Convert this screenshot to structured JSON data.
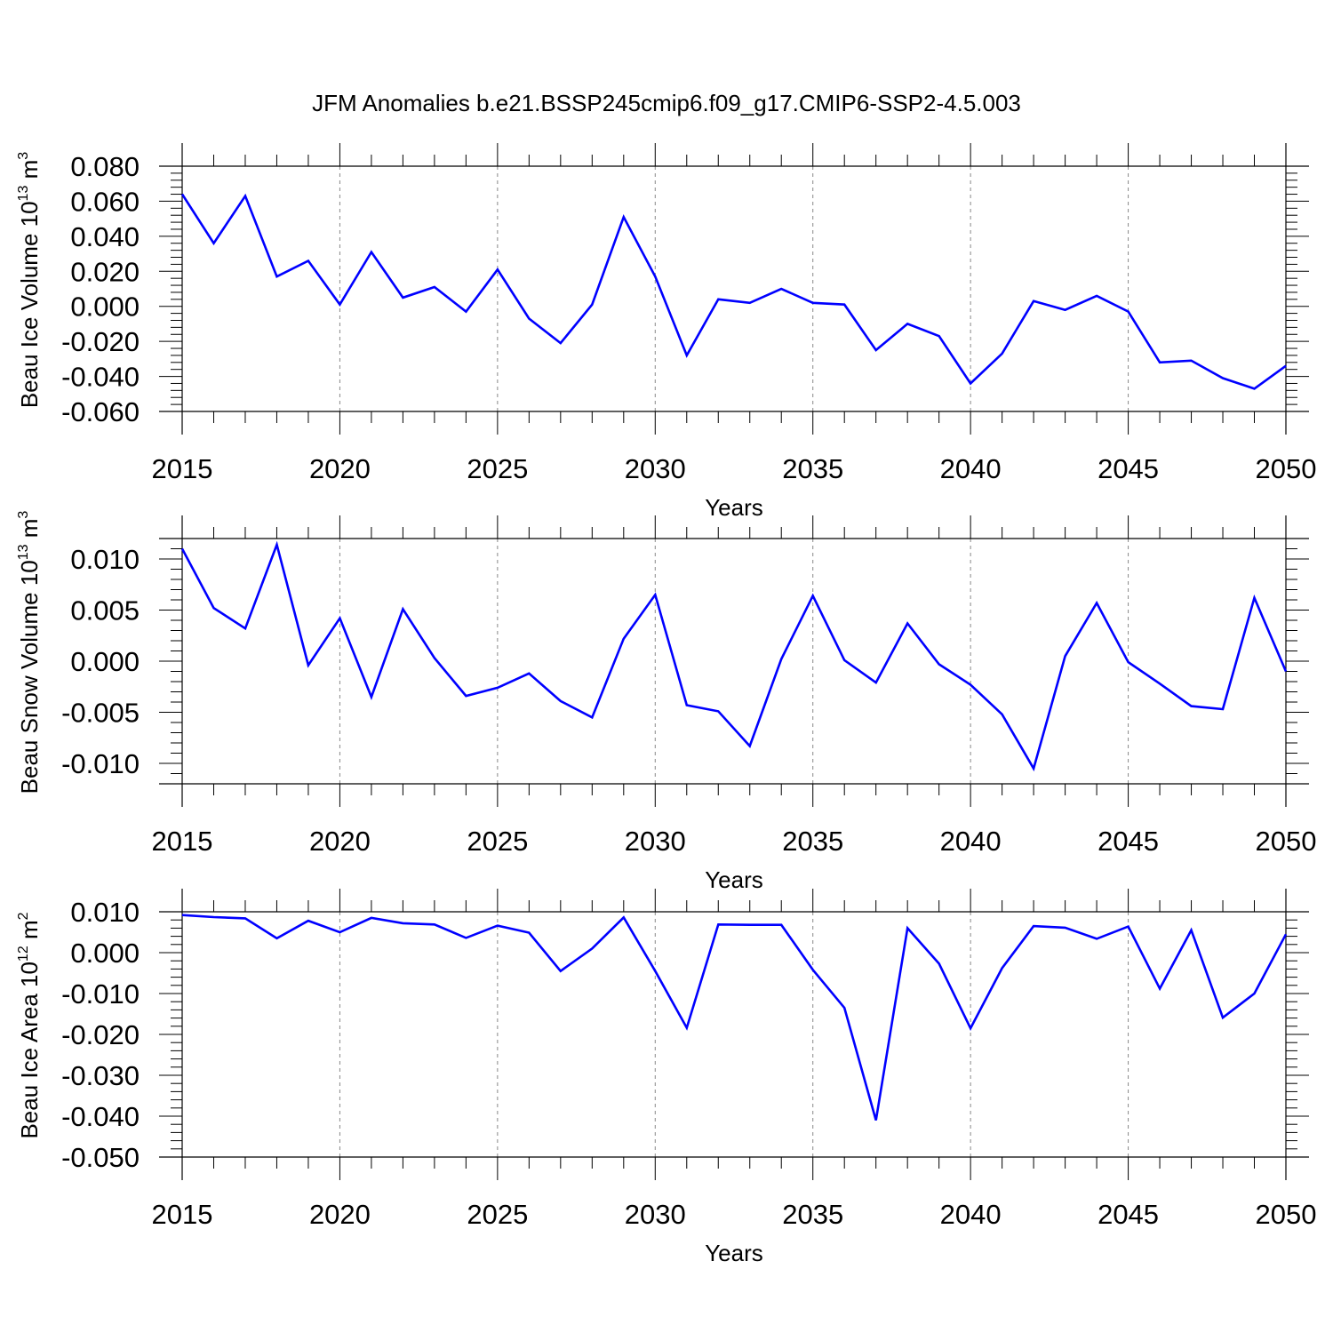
{
  "title": "JFM Anomalies b.e21.BSSP245cmip6.f09_g17.CMIP6-SSP2-4.5.003",
  "chart_data": [
    {
      "type": "line",
      "xlabel": "Years",
      "ylabel": {
        "text": "Beau Ice Volume 10",
        "sup": "13",
        "unit": " m",
        "unit_sup": "3"
      },
      "xlim": [
        2015,
        2050
      ],
      "ylim": [
        -0.06,
        0.08
      ],
      "x_ticks": [
        "2015",
        "2020",
        "2025",
        "2030",
        "2035",
        "2040",
        "2045",
        "2050"
      ],
      "y_ticks": [
        "0.080",
        "0.060",
        "0.040",
        "0.020",
        "0.000",
        "-0.020",
        "-0.040",
        "-0.060"
      ],
      "y_tick_values": [
        0.08,
        0.06,
        0.04,
        0.02,
        0.0,
        -0.02,
        -0.04,
        -0.06
      ],
      "grid": "vertical dashed at major x ticks",
      "color": "#0000ff",
      "series": [
        {
          "x": [
            2015,
            2016,
            2017,
            2018,
            2019,
            2020,
            2021,
            2022,
            2023,
            2024,
            2025,
            2026,
            2027,
            2028,
            2029,
            2030,
            2031,
            2032,
            2033,
            2034,
            2035,
            2036,
            2037,
            2038,
            2039,
            2040,
            2041,
            2042,
            2043,
            2044,
            2045,
            2046,
            2047,
            2048,
            2049,
            2050
          ],
          "values": [
            0.064,
            0.036,
            0.063,
            0.017,
            0.026,
            0.001,
            0.031,
            0.005,
            0.011,
            -0.003,
            0.021,
            -0.007,
            -0.021,
            0.001,
            0.051,
            0.017,
            -0.028,
            0.004,
            0.002,
            0.01,
            0.002,
            0.001,
            -0.025,
            -0.01,
            -0.017,
            -0.044,
            -0.027,
            0.003,
            -0.002,
            0.006,
            -0.003,
            -0.032,
            -0.031,
            -0.041,
            -0.047,
            -0.034
          ]
        }
      ]
    },
    {
      "type": "line",
      "xlabel": "Years",
      "ylabel": {
        "text": "Beau Snow Volume 10",
        "sup": "13",
        "unit": " m",
        "unit_sup": "3"
      },
      "xlim": [
        2015,
        2050
      ],
      "ylim": [
        -0.012,
        0.012
      ],
      "x_ticks": [
        "2015",
        "2020",
        "2025",
        "2030",
        "2035",
        "2040",
        "2045",
        "2050"
      ],
      "y_ticks": [
        "0.010",
        "0.005",
        "0.000",
        "-0.005",
        "-0.010"
      ],
      "y_tick_values": [
        0.01,
        0.005,
        0.0,
        -0.005,
        -0.01
      ],
      "grid": "vertical dashed at major x ticks",
      "color": "#0000ff",
      "series": [
        {
          "x": [
            2015,
            2016,
            2017,
            2018,
            2019,
            2020,
            2021,
            2022,
            2023,
            2024,
            2025,
            2026,
            2027,
            2028,
            2029,
            2030,
            2031,
            2032,
            2033,
            2034,
            2035,
            2036,
            2037,
            2038,
            2039,
            2040,
            2041,
            2042,
            2043,
            2044,
            2045,
            2046,
            2047,
            2048,
            2049,
            2050
          ],
          "values": [
            0.011,
            0.0052,
            0.0032,
            0.0114,
            -0.0004,
            0.0042,
            -0.0035,
            0.0051,
            0.0003,
            -0.0034,
            -0.0026,
            -0.0012,
            -0.0039,
            -0.0055,
            0.0022,
            0.0065,
            -0.0043,
            -0.0049,
            -0.0083,
            0.0002,
            0.0064,
            0.0001,
            -0.0021,
            0.0037,
            -0.0003,
            -0.0023,
            -0.0052,
            -0.0105,
            0.0005,
            0.0057,
            -0.0001,
            -0.0022,
            -0.0044,
            -0.0047,
            0.0062,
            -0.001
          ]
        }
      ]
    },
    {
      "type": "line",
      "xlabel": "Years",
      "ylabel": {
        "text": "Beau Ice Area 10",
        "sup": "12",
        "unit": " m",
        "unit_sup": "2"
      },
      "xlim": [
        2015,
        2050
      ],
      "ylim": [
        -0.05,
        0.01
      ],
      "x_ticks": [
        "2015",
        "2020",
        "2025",
        "2030",
        "2035",
        "2040",
        "2045",
        "2050"
      ],
      "y_ticks": [
        "0.010",
        "0.000",
        "-0.010",
        "-0.020",
        "-0.030",
        "-0.040",
        "-0.050"
      ],
      "y_tick_values": [
        0.01,
        0.0,
        -0.01,
        -0.02,
        -0.03,
        -0.04,
        -0.05
      ],
      "grid": "vertical dashed at major x ticks",
      "color": "#0000ff",
      "series": [
        {
          "x": [
            2015,
            2016,
            2017,
            2018,
            2019,
            2020,
            2021,
            2022,
            2023,
            2024,
            2025,
            2026,
            2027,
            2028,
            2029,
            2030,
            2031,
            2032,
            2033,
            2034,
            2035,
            2036,
            2037,
            2038,
            2039,
            2040,
            2041,
            2042,
            2043,
            2044,
            2045,
            2046,
            2047,
            2048,
            2049,
            2050
          ],
          "values": [
            0.0092,
            0.0087,
            0.0084,
            0.0035,
            0.0078,
            0.005,
            0.0085,
            0.0072,
            0.0069,
            0.0036,
            0.0066,
            0.0049,
            -0.0045,
            0.001,
            0.0086,
            -0.0045,
            -0.0184,
            0.0069,
            0.0068,
            0.0068,
            -0.0042,
            -0.0135,
            -0.041,
            0.006,
            -0.0027,
            -0.0185,
            -0.0038,
            0.0065,
            0.0061,
            0.0034,
            0.0064,
            -0.0088,
            0.0055,
            -0.0159,
            -0.01,
            0.0045
          ]
        }
      ]
    }
  ]
}
